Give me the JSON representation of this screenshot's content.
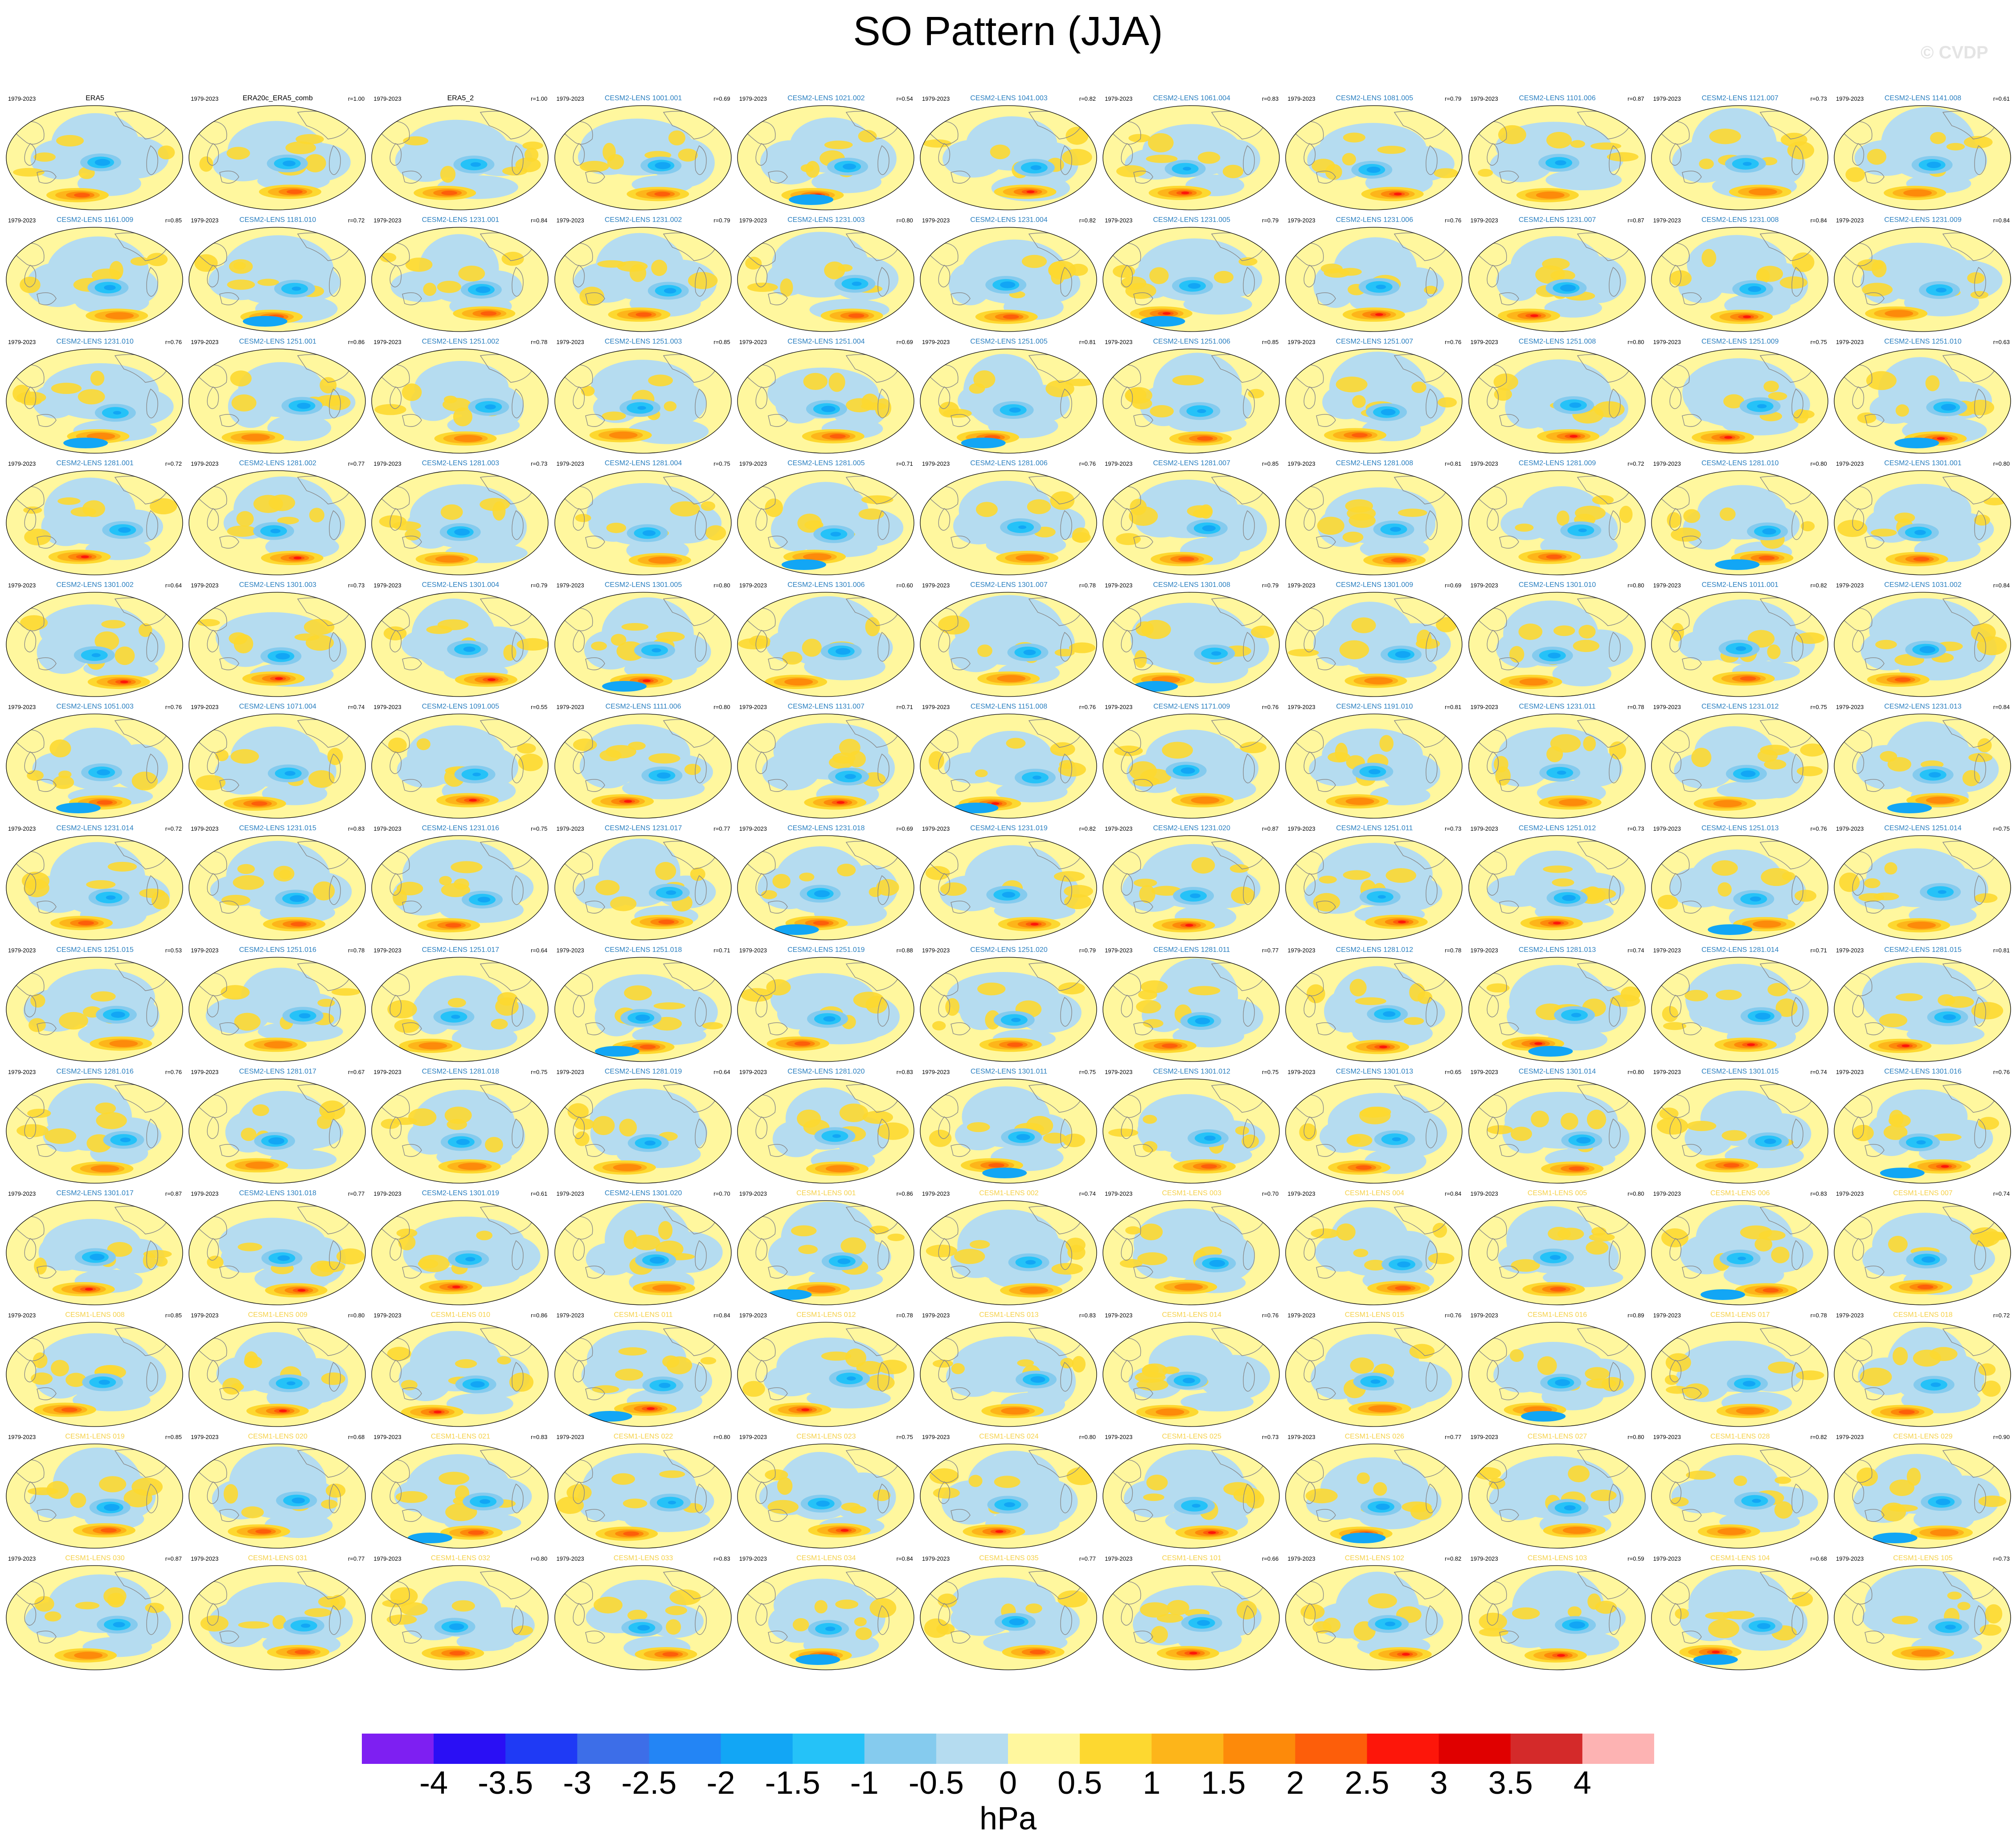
{
  "title": "SO Pattern (JJA)",
  "watermark": "© CVDP",
  "colors": {
    "name_obs": "#000000",
    "name_cesm2": "#2a7fc0",
    "name_cesm1": "#f5d14a",
    "ocean_neg": "#b5dcf0",
    "ocean_pos": "#fff79e"
  },
  "chart_data": {
    "type": "map-grid",
    "title": "SO Pattern (JJA)",
    "period": "1979-2023",
    "units": "hPa",
    "colorbar": {
      "ticks": [
        "-4",
        "-3.5",
        "-3",
        "-2.5",
        "-2",
        "-1.5",
        "-1",
        "-0.5",
        "0",
        "0.5",
        "1",
        "1.5",
        "2",
        "2.5",
        "3",
        "3.5",
        "4"
      ],
      "colors": [
        "#7e1ff2",
        "#2a0ff5",
        "#1f3af5",
        "#3d6ee8",
        "#2385f5",
        "#12a6f5",
        "#25c2f8",
        "#85cbee",
        "#b5dcf0",
        "#fff79e",
        "#fdd830",
        "#fdb51a",
        "#fd8a0a",
        "#fd5e0a",
        "#fd160a",
        "#e00000",
        "#d42a2a",
        "#fdb3b3"
      ]
    },
    "panels": [
      {
        "name": "ERA5",
        "r": "",
        "group": "obs"
      },
      {
        "name": "ERA20c_ERA5_comb",
        "r": "r=1.00",
        "group": "obs"
      },
      {
        "name": "ERA5_2",
        "r": "r=1.00",
        "group": "obs"
      },
      {
        "name": "CESM2-LENS 1001.001",
        "r": "r=0.69",
        "group": "cesm2"
      },
      {
        "name": "CESM2-LENS 1021.002",
        "r": "r=0.54",
        "group": "cesm2"
      },
      {
        "name": "CESM2-LENS 1041.003",
        "r": "r=0.82",
        "group": "cesm2"
      },
      {
        "name": "CESM2-LENS 1061.004",
        "r": "r=0.83",
        "group": "cesm2"
      },
      {
        "name": "CESM2-LENS 1081.005",
        "r": "r=0.79",
        "group": "cesm2"
      },
      {
        "name": "CESM2-LENS 1101.006",
        "r": "r=0.87",
        "group": "cesm2"
      },
      {
        "name": "CESM2-LENS 1121.007",
        "r": "r=0.73",
        "group": "cesm2"
      },
      {
        "name": "CESM2-LENS 1141.008",
        "r": "r=0.61",
        "group": "cesm2"
      },
      {
        "name": "CESM2-LENS 1161.009",
        "r": "r=0.85",
        "group": "cesm2"
      },
      {
        "name": "CESM2-LENS 1181.010",
        "r": "r=0.72",
        "group": "cesm2"
      },
      {
        "name": "CESM2-LENS 1231.001",
        "r": "r=0.84",
        "group": "cesm2"
      },
      {
        "name": "CESM2-LENS 1231.002",
        "r": "r=0.79",
        "group": "cesm2"
      },
      {
        "name": "CESM2-LENS 1231.003",
        "r": "r=0.80",
        "group": "cesm2"
      },
      {
        "name": "CESM2-LENS 1231.004",
        "r": "r=0.82",
        "group": "cesm2"
      },
      {
        "name": "CESM2-LENS 1231.005",
        "r": "r=0.79",
        "group": "cesm2"
      },
      {
        "name": "CESM2-LENS 1231.006",
        "r": "r=0.76",
        "group": "cesm2"
      },
      {
        "name": "CESM2-LENS 1231.007",
        "r": "r=0.87",
        "group": "cesm2"
      },
      {
        "name": "CESM2-LENS 1231.008",
        "r": "r=0.84",
        "group": "cesm2"
      },
      {
        "name": "CESM2-LENS 1231.009",
        "r": "r=0.84",
        "group": "cesm2"
      },
      {
        "name": "CESM2-LENS 1231.010",
        "r": "r=0.76",
        "group": "cesm2"
      },
      {
        "name": "CESM2-LENS 1251.001",
        "r": "r=0.86",
        "group": "cesm2"
      },
      {
        "name": "CESM2-LENS 1251.002",
        "r": "r=0.78",
        "group": "cesm2"
      },
      {
        "name": "CESM2-LENS 1251.003",
        "r": "r=0.85",
        "group": "cesm2"
      },
      {
        "name": "CESM2-LENS 1251.004",
        "r": "r=0.69",
        "group": "cesm2"
      },
      {
        "name": "CESM2-LENS 1251.005",
        "r": "r=0.81",
        "group": "cesm2"
      },
      {
        "name": "CESM2-LENS 1251.006",
        "r": "r=0.85",
        "group": "cesm2"
      },
      {
        "name": "CESM2-LENS 1251.007",
        "r": "r=0.76",
        "group": "cesm2"
      },
      {
        "name": "CESM2-LENS 1251.008",
        "r": "r=0.80",
        "group": "cesm2"
      },
      {
        "name": "CESM2-LENS 1251.009",
        "r": "r=0.75",
        "group": "cesm2"
      },
      {
        "name": "CESM2-LENS 1251.010",
        "r": "r=0.63",
        "group": "cesm2"
      },
      {
        "name": "CESM2-LENS 1281.001",
        "r": "r=0.72",
        "group": "cesm2"
      },
      {
        "name": "CESM2-LENS 1281.002",
        "r": "r=0.77",
        "group": "cesm2"
      },
      {
        "name": "CESM2-LENS 1281.003",
        "r": "r=0.73",
        "group": "cesm2"
      },
      {
        "name": "CESM2-LENS 1281.004",
        "r": "r=0.75",
        "group": "cesm2"
      },
      {
        "name": "CESM2-LENS 1281.005",
        "r": "r=0.71",
        "group": "cesm2"
      },
      {
        "name": "CESM2-LENS 1281.006",
        "r": "r=0.76",
        "group": "cesm2"
      },
      {
        "name": "CESM2-LENS 1281.007",
        "r": "r=0.85",
        "group": "cesm2"
      },
      {
        "name": "CESM2-LENS 1281.008",
        "r": "r=0.81",
        "group": "cesm2"
      },
      {
        "name": "CESM2-LENS 1281.009",
        "r": "r=0.72",
        "group": "cesm2"
      },
      {
        "name": "CESM2-LENS 1281.010",
        "r": "r=0.80",
        "group": "cesm2"
      },
      {
        "name": "CESM2-LENS 1301.001",
        "r": "r=0.80",
        "group": "cesm2"
      },
      {
        "name": "CESM2-LENS 1301.002",
        "r": "r=0.64",
        "group": "cesm2"
      },
      {
        "name": "CESM2-LENS 1301.003",
        "r": "r=0.73",
        "group": "cesm2"
      },
      {
        "name": "CESM2-LENS 1301.004",
        "r": "r=0.79",
        "group": "cesm2"
      },
      {
        "name": "CESM2-LENS 1301.005",
        "r": "r=0.80",
        "group": "cesm2"
      },
      {
        "name": "CESM2-LENS 1301.006",
        "r": "r=0.60",
        "group": "cesm2"
      },
      {
        "name": "CESM2-LENS 1301.007",
        "r": "r=0.78",
        "group": "cesm2"
      },
      {
        "name": "CESM2-LENS 1301.008",
        "r": "r=0.79",
        "group": "cesm2"
      },
      {
        "name": "CESM2-LENS 1301.009",
        "r": "r=0.69",
        "group": "cesm2"
      },
      {
        "name": "CESM2-LENS 1301.010",
        "r": "r=0.80",
        "group": "cesm2"
      },
      {
        "name": "CESM2-LENS 1011.001",
        "r": "r=0.82",
        "group": "cesm2"
      },
      {
        "name": "CESM2-LENS 1031.002",
        "r": "r=0.84",
        "group": "cesm2"
      },
      {
        "name": "CESM2-LENS 1051.003",
        "r": "r=0.76",
        "group": "cesm2"
      },
      {
        "name": "CESM2-LENS 1071.004",
        "r": "r=0.74",
        "group": "cesm2"
      },
      {
        "name": "CESM2-LENS 1091.005",
        "r": "r=0.55",
        "group": "cesm2"
      },
      {
        "name": "CESM2-LENS 1111.006",
        "r": "r=0.80",
        "group": "cesm2"
      },
      {
        "name": "CESM2-LENS 1131.007",
        "r": "r=0.71",
        "group": "cesm2"
      },
      {
        "name": "CESM2-LENS 1151.008",
        "r": "r=0.76",
        "group": "cesm2"
      },
      {
        "name": "CESM2-LENS 1171.009",
        "r": "r=0.76",
        "group": "cesm2"
      },
      {
        "name": "CESM2-LENS 1191.010",
        "r": "r=0.81",
        "group": "cesm2"
      },
      {
        "name": "CESM2-LENS 1231.011",
        "r": "r=0.78",
        "group": "cesm2"
      },
      {
        "name": "CESM2-LENS 1231.012",
        "r": "r=0.75",
        "group": "cesm2"
      },
      {
        "name": "CESM2-LENS 1231.013",
        "r": "r=0.84",
        "group": "cesm2"
      },
      {
        "name": "CESM2-LENS 1231.014",
        "r": "r=0.72",
        "group": "cesm2"
      },
      {
        "name": "CESM2-LENS 1231.015",
        "r": "r=0.83",
        "group": "cesm2"
      },
      {
        "name": "CESM2-LENS 1231.016",
        "r": "r=0.75",
        "group": "cesm2"
      },
      {
        "name": "CESM2-LENS 1231.017",
        "r": "r=0.77",
        "group": "cesm2"
      },
      {
        "name": "CESM2-LENS 1231.018",
        "r": "r=0.69",
        "group": "cesm2"
      },
      {
        "name": "CESM2-LENS 1231.019",
        "r": "r=0.82",
        "group": "cesm2"
      },
      {
        "name": "CESM2-LENS 1231.020",
        "r": "r=0.87",
        "group": "cesm2"
      },
      {
        "name": "CESM2-LENS 1251.011",
        "r": "r=0.73",
        "group": "cesm2"
      },
      {
        "name": "CESM2-LENS 1251.012",
        "r": "r=0.73",
        "group": "cesm2"
      },
      {
        "name": "CESM2-LENS 1251.013",
        "r": "r=0.76",
        "group": "cesm2"
      },
      {
        "name": "CESM2-LENS 1251.014",
        "r": "r=0.75",
        "group": "cesm2"
      },
      {
        "name": "CESM2-LENS 1251.015",
        "r": "r=0.53",
        "group": "cesm2"
      },
      {
        "name": "CESM2-LENS 1251.016",
        "r": "r=0.78",
        "group": "cesm2"
      },
      {
        "name": "CESM2-LENS 1251.017",
        "r": "r=0.64",
        "group": "cesm2"
      },
      {
        "name": "CESM2-LENS 1251.018",
        "r": "r=0.71",
        "group": "cesm2"
      },
      {
        "name": "CESM2-LENS 1251.019",
        "r": "r=0.88",
        "group": "cesm2"
      },
      {
        "name": "CESM2-LENS 1251.020",
        "r": "r=0.79",
        "group": "cesm2"
      },
      {
        "name": "CESM2-LENS 1281.011",
        "r": "r=0.77",
        "group": "cesm2"
      },
      {
        "name": "CESM2-LENS 1281.012",
        "r": "r=0.78",
        "group": "cesm2"
      },
      {
        "name": "CESM2-LENS 1281.013",
        "r": "r=0.74",
        "group": "cesm2"
      },
      {
        "name": "CESM2-LENS 1281.014",
        "r": "r=0.71",
        "group": "cesm2"
      },
      {
        "name": "CESM2-LENS 1281.015",
        "r": "r=0.81",
        "group": "cesm2"
      },
      {
        "name": "CESM2-LENS 1281.016",
        "r": "r=0.76",
        "group": "cesm2"
      },
      {
        "name": "CESM2-LENS 1281.017",
        "r": "r=0.67",
        "group": "cesm2"
      },
      {
        "name": "CESM2-LENS 1281.018",
        "r": "r=0.75",
        "group": "cesm2"
      },
      {
        "name": "CESM2-LENS 1281.019",
        "r": "r=0.64",
        "group": "cesm2"
      },
      {
        "name": "CESM2-LENS 1281.020",
        "r": "r=0.83",
        "group": "cesm2"
      },
      {
        "name": "CESM2-LENS 1301.011",
        "r": "r=0.75",
        "group": "cesm2"
      },
      {
        "name": "CESM2-LENS 1301.012",
        "r": "r=0.75",
        "group": "cesm2"
      },
      {
        "name": "CESM2-LENS 1301.013",
        "r": "r=0.65",
        "group": "cesm2"
      },
      {
        "name": "CESM2-LENS 1301.014",
        "r": "r=0.80",
        "group": "cesm2"
      },
      {
        "name": "CESM2-LENS 1301.015",
        "r": "r=0.74",
        "group": "cesm2"
      },
      {
        "name": "CESM2-LENS 1301.016",
        "r": "r=0.76",
        "group": "cesm2"
      },
      {
        "name": "CESM2-LENS 1301.017",
        "r": "r=0.87",
        "group": "cesm2"
      },
      {
        "name": "CESM2-LENS 1301.018",
        "r": "r=0.77",
        "group": "cesm2"
      },
      {
        "name": "CESM2-LENS 1301.019",
        "r": "r=0.61",
        "group": "cesm2"
      },
      {
        "name": "CESM2-LENS 1301.020",
        "r": "r=0.70",
        "group": "cesm2"
      },
      {
        "name": "CESM1-LENS 001",
        "r": "r=0.86",
        "group": "cesm1"
      },
      {
        "name": "CESM1-LENS 002",
        "r": "r=0.74",
        "group": "cesm1"
      },
      {
        "name": "CESM1-LENS 003",
        "r": "r=0.70",
        "group": "cesm1"
      },
      {
        "name": "CESM1-LENS 004",
        "r": "r=0.84",
        "group": "cesm1"
      },
      {
        "name": "CESM1-LENS 005",
        "r": "r=0.80",
        "group": "cesm1"
      },
      {
        "name": "CESM1-LENS 006",
        "r": "r=0.83",
        "group": "cesm1"
      },
      {
        "name": "CESM1-LENS 007",
        "r": "r=0.74",
        "group": "cesm1"
      },
      {
        "name": "CESM1-LENS 008",
        "r": "r=0.85",
        "group": "cesm1"
      },
      {
        "name": "CESM1-LENS 009",
        "r": "r=0.80",
        "group": "cesm1"
      },
      {
        "name": "CESM1-LENS 010",
        "r": "r=0.86",
        "group": "cesm1"
      },
      {
        "name": "CESM1-LENS 011",
        "r": "r=0.84",
        "group": "cesm1"
      },
      {
        "name": "CESM1-LENS 012",
        "r": "r=0.78",
        "group": "cesm1"
      },
      {
        "name": "CESM1-LENS 013",
        "r": "r=0.83",
        "group": "cesm1"
      },
      {
        "name": "CESM1-LENS 014",
        "r": "r=0.76",
        "group": "cesm1"
      },
      {
        "name": "CESM1-LENS 015",
        "r": "r=0.76",
        "group": "cesm1"
      },
      {
        "name": "CESM1-LENS 016",
        "r": "r=0.89",
        "group": "cesm1"
      },
      {
        "name": "CESM1-LENS 017",
        "r": "r=0.78",
        "group": "cesm1"
      },
      {
        "name": "CESM1-LENS 018",
        "r": "r=0.72",
        "group": "cesm1"
      },
      {
        "name": "CESM1-LENS 019",
        "r": "r=0.85",
        "group": "cesm1"
      },
      {
        "name": "CESM1-LENS 020",
        "r": "r=0.68",
        "group": "cesm1"
      },
      {
        "name": "CESM1-LENS 021",
        "r": "r=0.83",
        "group": "cesm1"
      },
      {
        "name": "CESM1-LENS 022",
        "r": "r=0.80",
        "group": "cesm1"
      },
      {
        "name": "CESM1-LENS 023",
        "r": "r=0.75",
        "group": "cesm1"
      },
      {
        "name": "CESM1-LENS 024",
        "r": "r=0.80",
        "group": "cesm1"
      },
      {
        "name": "CESM1-LENS 025",
        "r": "r=0.73",
        "group": "cesm1"
      },
      {
        "name": "CESM1-LENS 026",
        "r": "r=0.77",
        "group": "cesm1"
      },
      {
        "name": "CESM1-LENS 027",
        "r": "r=0.80",
        "group": "cesm1"
      },
      {
        "name": "CESM1-LENS 028",
        "r": "r=0.82",
        "group": "cesm1"
      },
      {
        "name": "CESM1-LENS 029",
        "r": "r=0.90",
        "group": "cesm1"
      },
      {
        "name": "CESM1-LENS 030",
        "r": "r=0.87",
        "group": "cesm1"
      },
      {
        "name": "CESM1-LENS 031",
        "r": "r=0.77",
        "group": "cesm1"
      },
      {
        "name": "CESM1-LENS 032",
        "r": "r=0.80",
        "group": "cesm1"
      },
      {
        "name": "CESM1-LENS 033",
        "r": "r=0.83",
        "group": "cesm1"
      },
      {
        "name": "CESM1-LENS 034",
        "r": "r=0.84",
        "group": "cesm1"
      },
      {
        "name": "CESM1-LENS 035",
        "r": "r=0.77",
        "group": "cesm1"
      },
      {
        "name": "CESM1-LENS 101",
        "r": "r=0.66",
        "group": "cesm1"
      },
      {
        "name": "CESM1-LENS 102",
        "r": "r=0.82",
        "group": "cesm1"
      },
      {
        "name": "CESM1-LENS 103",
        "r": "r=0.59",
        "group": "cesm1"
      },
      {
        "name": "CESM1-LENS 104",
        "r": "r=0.68",
        "group": "cesm1"
      },
      {
        "name": "CESM1-LENS 105",
        "r": "r=0.73",
        "group": "cesm1"
      }
    ]
  }
}
